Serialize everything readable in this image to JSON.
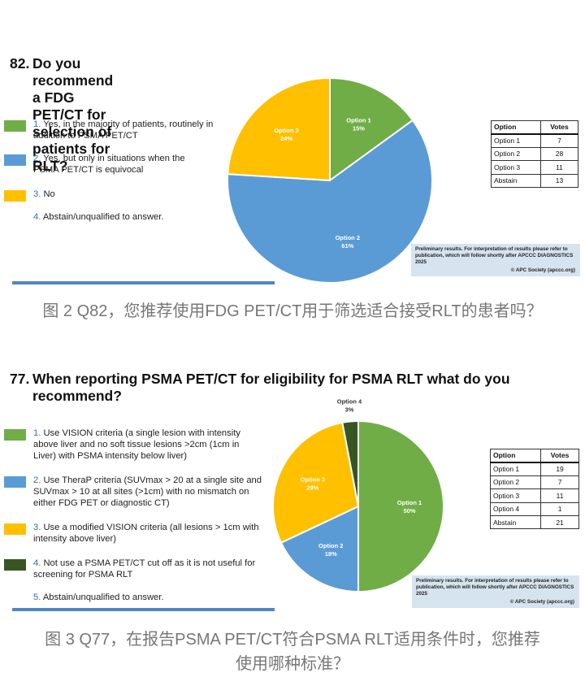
{
  "q82": {
    "number": "82.",
    "title": "Do you recommend a FDG PET/CT for selection of patients for RLT?",
    "legend": [
      {
        "num": "1.",
        "text": "Yes, in the majority of patients, routinely in addition to PSMA PET/CT",
        "color": "#70ad47"
      },
      {
        "num": "2.",
        "text": "Yes, but only in situations when the PSMA PET/CT is equivocal",
        "color": "#5b9bd5"
      },
      {
        "num": "3.",
        "text": "No",
        "color": "#ffc000"
      },
      {
        "num": "4.",
        "text": "Abstain/unqualified to answer.",
        "color": ""
      }
    ],
    "table": {
      "headers": [
        "Option",
        "Votes"
      ],
      "rows": [
        [
          "Option 1",
          "7"
        ],
        [
          "Option 2",
          "28"
        ],
        [
          "Option 3",
          "11"
        ],
        [
          "Abstain",
          "13"
        ]
      ]
    },
    "note": "Preliminary results. For interpretation of results please refer to publication, which will follow shortly after APCCC DIAGNOSTICS 2025",
    "society": "© APC Society (apccc.org)"
  },
  "caption1": "图 2 Q82，您推荐使用FDG PET/CT用于筛选适合接受RLT的患者吗？",
  "q77": {
    "number": "77.",
    "title_line1": "When reporting PSMA PET/CT for eligibility for PSMA RLT what do you",
    "title_line2": "recommend?",
    "legend": [
      {
        "num": "1.",
        "text": "Use VISION criteria (a single lesion with intensity above liver and no soft tissue lesions >2cm (1cm in Liver) with PSMA intensity below liver)",
        "color": "#70ad47"
      },
      {
        "num": "2.",
        "text": "Use TheraP criteria (SUVmax > 20 at a single site and SUVmax > 10 at all sites (>1cm) with no mismatch on either FDG PET or diagnostic CT)",
        "color": "#5b9bd5"
      },
      {
        "num": "3.",
        "text": "Use a modified VISION criteria (all lesions > 1cm with intensity above liver)",
        "color": "#ffc000"
      },
      {
        "num": "4.",
        "text": "Not use a PSMA PET/CT cut off as it is not useful for screening for PSMA RLT",
        "color": "#375623"
      },
      {
        "num": "5.",
        "text": "Abstain/unqualified to answer.",
        "color": ""
      }
    ],
    "table": {
      "headers": [
        "Option",
        "Votes"
      ],
      "rows": [
        [
          "Option 1",
          "19"
        ],
        [
          "Option 2",
          "7"
        ],
        [
          "Option 3",
          "11"
        ],
        [
          "Option 4",
          "1"
        ],
        [
          "Abstain",
          "21"
        ]
      ]
    },
    "note": "Preliminary results. For interpretation of results please refer to publication, which will follow shortly after APCCC DIAGNOSTICS 2025",
    "society": "© APC Society (apccc.org)"
  },
  "caption2_line1": "图 3 Q77，在报告PSMA PET/CT符合PSMA RLT适用条件时，您推荐",
  "caption2_line2": "使用哪种标准？",
  "chart_data": [
    {
      "type": "pie",
      "title": "Do you recommend a FDG PET/CT for selection of patients for RLT?",
      "categories": [
        "Option 1",
        "Option 2",
        "Option 3"
      ],
      "values": [
        15,
        61,
        24
      ],
      "labels": [
        "15%",
        "61%",
        "24%"
      ],
      "colors": [
        "#70ad47",
        "#5b9bd5",
        "#ffc000"
      ]
    },
    {
      "type": "pie",
      "title": "When reporting PSMA PET/CT for eligibility for PSMA RLT what do you recommend?",
      "categories": [
        "Option 1",
        "Option 2",
        "Option 3",
        "Option 4"
      ],
      "values": [
        50,
        18,
        29,
        3
      ],
      "labels": [
        "50%",
        "18%",
        "29%",
        "3%"
      ],
      "colors": [
        "#70ad47",
        "#5b9bd5",
        "#ffc000",
        "#375623"
      ]
    }
  ]
}
